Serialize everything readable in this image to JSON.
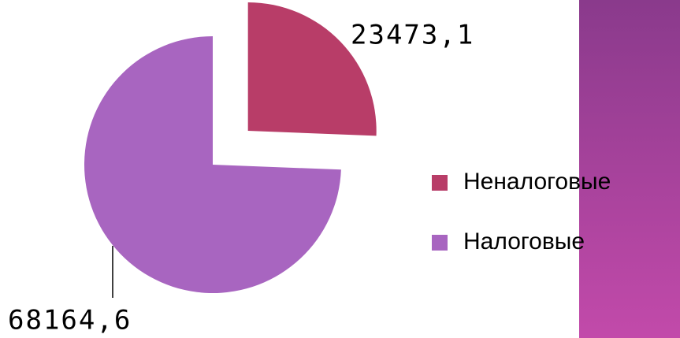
{
  "chart_data": {
    "type": "pie",
    "categories": [
      "Неналоговые",
      "Налоговые"
    ],
    "values": [
      23473.1,
      68164.6
    ],
    "value_labels": [
      "23473,1",
      "68164,6"
    ],
    "colors": [
      "#b83d68",
      "#a865c0"
    ],
    "explode": [
      true,
      false
    ]
  }
}
